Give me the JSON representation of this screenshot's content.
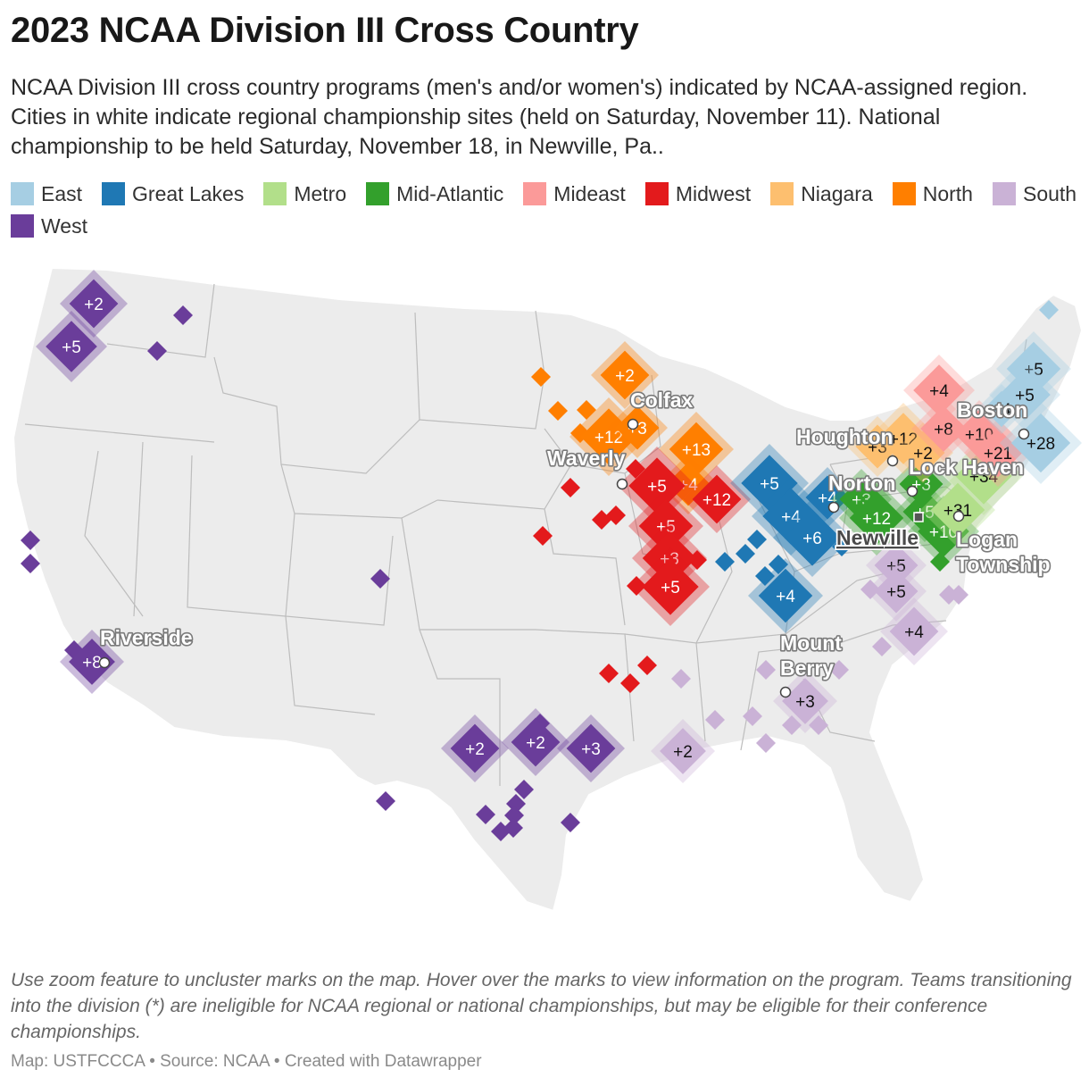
{
  "title": "2023 NCAA Division III Cross Country",
  "description": "NCAA Division III cross country programs (men's and/or women's) indicated by NCAA-assigned region. Cities in white indicate regional championship sites (held on Saturday, November 11). National championship to be held Saturday, November 18, in Newville, Pa..",
  "legend": [
    {
      "label": "East",
      "color": "#a6cee3"
    },
    {
      "label": "Great Lakes",
      "color": "#1f78b4"
    },
    {
      "label": "Metro",
      "color": "#b2df8a"
    },
    {
      "label": "Mid-Atlantic",
      "color": "#33a02c"
    },
    {
      "label": "Mideast",
      "color": "#fb9a99"
    },
    {
      "label": "Midwest",
      "color": "#e31a1c"
    },
    {
      "label": "Niagara",
      "color": "#fdbf6f"
    },
    {
      "label": "North",
      "color": "#ff7f00"
    },
    {
      "label": "South",
      "color": "#cab2d6"
    },
    {
      "label": "West",
      "color": "#6a3d9a"
    }
  ],
  "clusters": [
    {
      "region": "West",
      "count": "+2"
    },
    {
      "region": "West",
      "count": "+5"
    },
    {
      "region": "West",
      "count": "+8"
    },
    {
      "region": "West",
      "count": "+2"
    },
    {
      "region": "West",
      "count": "+2"
    },
    {
      "region": "West",
      "count": "+3"
    },
    {
      "region": "North",
      "count": "+2"
    },
    {
      "region": "North",
      "count": "+12"
    },
    {
      "region": "North",
      "count": "+3"
    },
    {
      "region": "North",
      "count": "+13"
    },
    {
      "region": "North",
      "count": "+4"
    },
    {
      "region": "Midwest",
      "count": "+5"
    },
    {
      "region": "Midwest",
      "count": "+12"
    },
    {
      "region": "Midwest",
      "count": "+5"
    },
    {
      "region": "Midwest",
      "count": "+3"
    },
    {
      "region": "Midwest",
      "count": "+5"
    },
    {
      "region": "Great Lakes",
      "count": "+5"
    },
    {
      "region": "Great Lakes",
      "count": "+4"
    },
    {
      "region": "Great Lakes",
      "count": "+4"
    },
    {
      "region": "Great Lakes",
      "count": "+6"
    },
    {
      "region": "Great Lakes",
      "count": "+4"
    },
    {
      "region": "South",
      "count": "+5"
    },
    {
      "region": "South",
      "count": "+5"
    },
    {
      "region": "South",
      "count": "+4"
    },
    {
      "region": "South",
      "count": "+3"
    },
    {
      "region": "South",
      "count": "+2"
    },
    {
      "region": "Mid-Atlantic",
      "count": "+3"
    },
    {
      "region": "Mid-Atlantic",
      "count": "+12"
    },
    {
      "region": "Mid-Atlantic",
      "count": "+3"
    },
    {
      "region": "Mid-Atlantic",
      "count": "+5"
    },
    {
      "region": "Mid-Atlantic",
      "count": "+10"
    },
    {
      "region": "Metro",
      "count": "+34"
    },
    {
      "region": "Metro",
      "count": "+31"
    },
    {
      "region": "Niagara",
      "count": "+3"
    },
    {
      "region": "Niagara",
      "count": "+12"
    },
    {
      "region": "Niagara",
      "count": "+2"
    },
    {
      "region": "Mideast",
      "count": "+4"
    },
    {
      "region": "Mideast",
      "count": "+8"
    },
    {
      "region": "Mideast",
      "count": "+10"
    },
    {
      "region": "Mideast",
      "count": "+21"
    },
    {
      "region": "East",
      "count": "+5"
    },
    {
      "region": "East",
      "count": "+5"
    },
    {
      "region": "East",
      "count": "+28"
    },
    {
      "region": "East",
      "count": "+4"
    }
  ],
  "cities": {
    "riverside": "Riverside",
    "colfax": "Colfax",
    "waverly": "Waverly",
    "houghton": "Houghton",
    "boston": "Boston",
    "lock_haven": "Lock Haven",
    "norton": "Norton",
    "newville": "Newville",
    "logan_1": "Logan",
    "logan_2": "Township",
    "mount_1": "Mount",
    "mount_2": "Berry"
  },
  "notes": "Use zoom feature to uncluster marks on the map. Hover over the marks to view information on the program. Teams transitioning into the division (*) are ineligible for NCAA regional or national championships, but may be eligible for their conference championships.",
  "credit": "Map: USTFCCCA • Source: NCAA • Created with Datawrapper"
}
